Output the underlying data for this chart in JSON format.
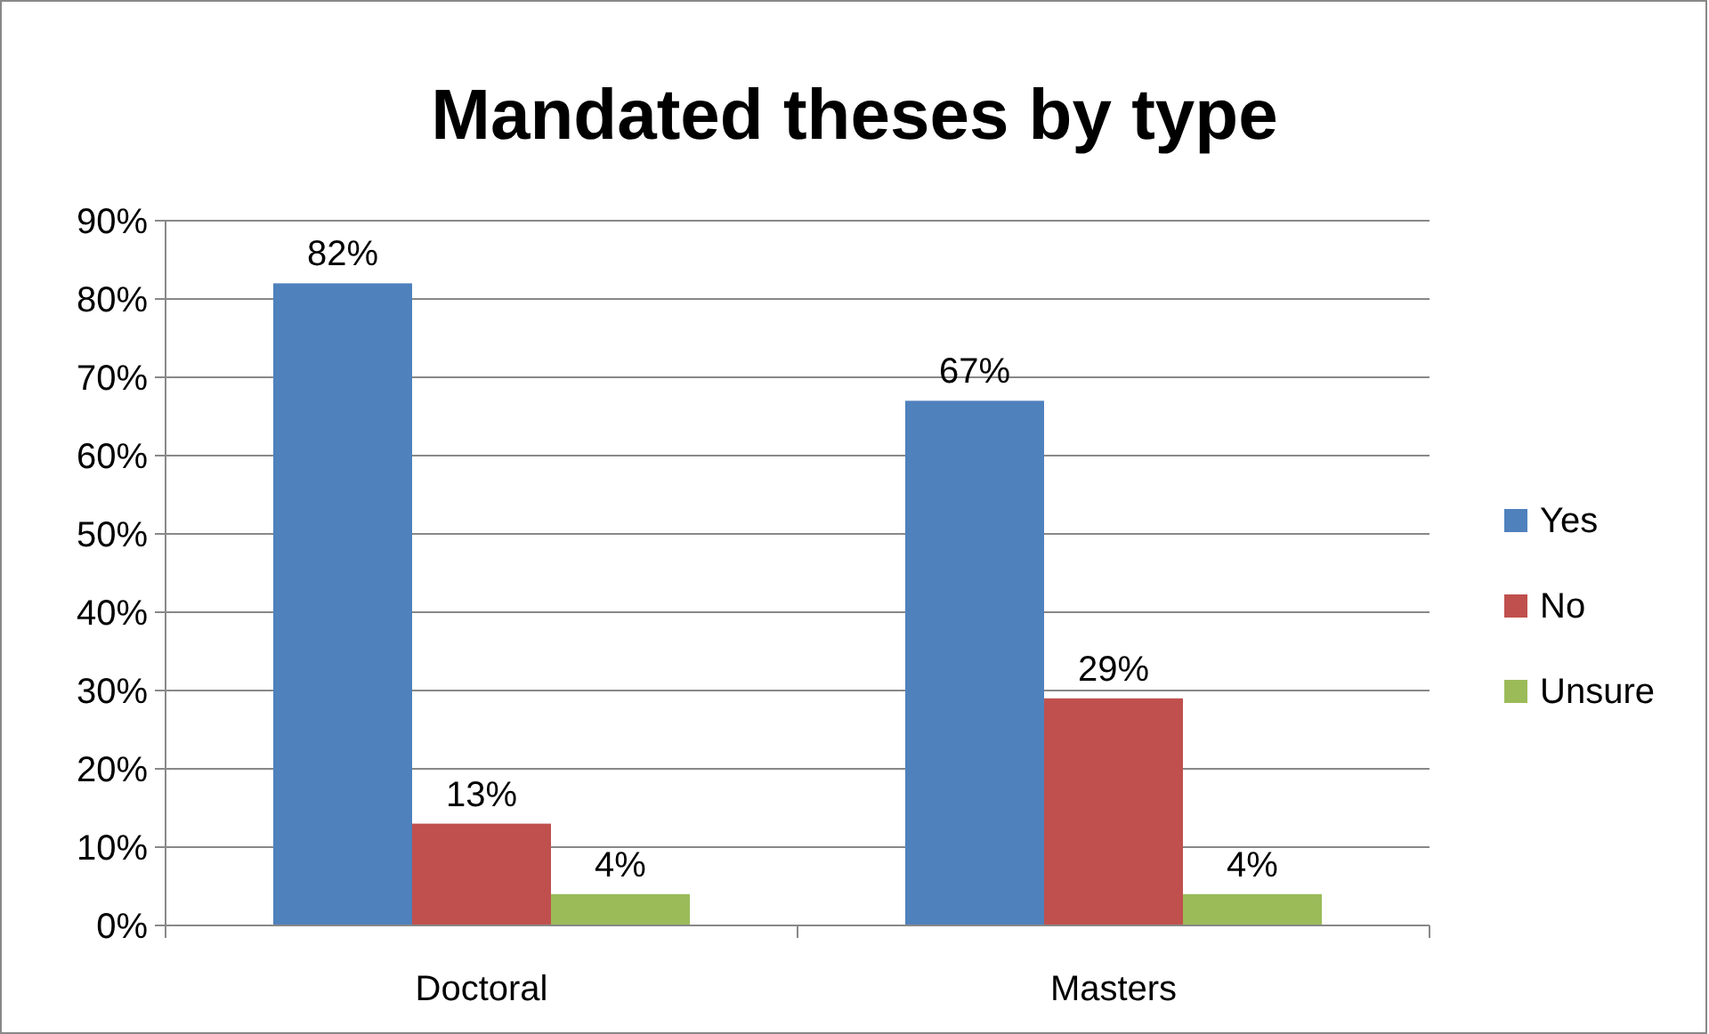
{
  "chart_data": {
    "type": "bar",
    "title": "Mandated theses by type",
    "categories": [
      "Doctoral",
      "Masters"
    ],
    "series": [
      {
        "name": "Yes",
        "color": "#4f81bd",
        "values": [
          82,
          67
        ],
        "value_labels": [
          "82%",
          "67%"
        ]
      },
      {
        "name": "No",
        "color": "#c0504d",
        "values": [
          13,
          29
        ],
        "value_labels": [
          "13%",
          "29%"
        ]
      },
      {
        "name": "Unsure",
        "color": "#9bbb59",
        "values": [
          4,
          4
        ],
        "value_labels": [
          "4%",
          "4%"
        ]
      }
    ],
    "ylim": [
      0,
      90
    ],
    "yticks": [
      {
        "value": 0,
        "label": "0%"
      },
      {
        "value": 10,
        "label": "10%"
      },
      {
        "value": 20,
        "label": "20%"
      },
      {
        "value": 30,
        "label": "30%"
      },
      {
        "value": 40,
        "label": "40%"
      },
      {
        "value": 50,
        "label": "50%"
      },
      {
        "value": 60,
        "label": "60%"
      },
      {
        "value": 70,
        "label": "70%"
      },
      {
        "value": 80,
        "label": "80%"
      },
      {
        "value": 90,
        "label": "90%"
      }
    ],
    "grid": "y",
    "legend": "right"
  }
}
